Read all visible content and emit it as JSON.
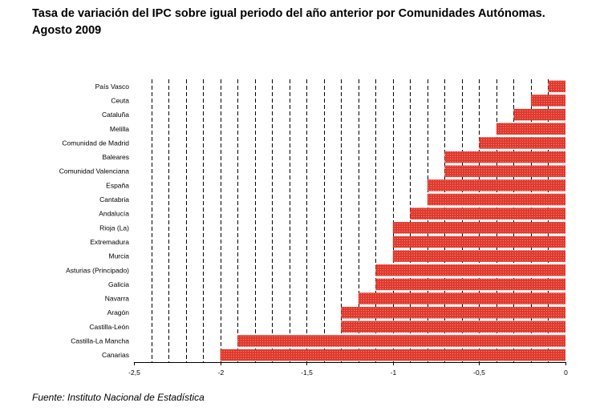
{
  "title_line1": "Tasa de variación del IPC sobre igual periodo del año anterior por Comunidades Autónomas.",
  "title_line2": "Agosto 2009",
  "source": "Fuente: Instituto Nacional de Estadística",
  "bar_color": "#e03a2e",
  "chart_data": {
    "type": "bar",
    "orientation": "horizontal",
    "title": "Tasa de variación del IPC sobre igual periodo del año anterior por Comunidades Autónomas. Agosto 2009",
    "categories": [
      "País Vasco",
      "Ceuta",
      "Cataluña",
      "Melilla",
      "Comunidad de Madrid",
      "Baleares",
      "Comunidad Valenciana",
      "España",
      "Cantabria",
      "Andalucía",
      "Rioja (La)",
      "Extremadura",
      "Murcia",
      "Asturias (Principado)",
      "Galicia",
      "Navarra",
      "Aragón",
      "Castilla-León",
      "Castilla-La Mancha",
      "Canarias"
    ],
    "values": [
      -0.1,
      -0.2,
      -0.3,
      -0.4,
      -0.5,
      -0.7,
      -0.7,
      -0.8,
      -0.8,
      -0.9,
      -1.0,
      -1.0,
      -1.0,
      -1.1,
      -1.1,
      -1.2,
      -1.3,
      -1.3,
      -1.9,
      -2.0
    ],
    "xlim": [
      -2.5,
      0
    ],
    "xticks": [
      -2.5,
      -2,
      -1.5,
      -1,
      -0.5,
      0
    ],
    "xtick_labels": [
      "-2,5",
      "-2",
      "-1,5",
      "-1",
      "-0,5",
      "0"
    ],
    "grid": "vertical dashed every 0.1",
    "legend": "none"
  }
}
